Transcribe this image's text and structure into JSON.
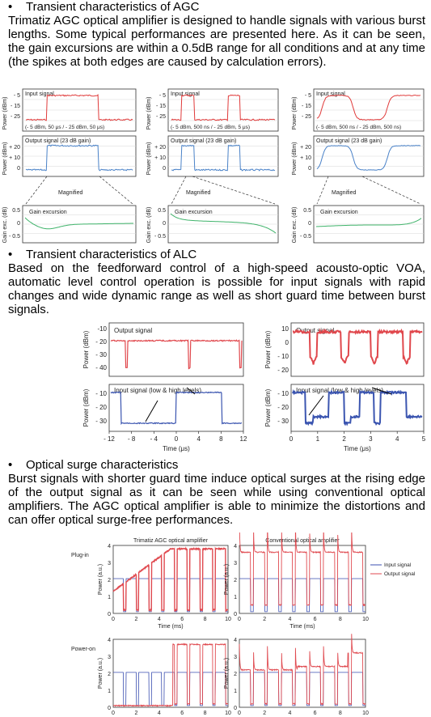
{
  "sections": {
    "agc": {
      "bullet": "•",
      "heading": "Transient characteristics of AGC",
      "body": "Trimatiz AGC optical amplifier is designed to handle signals with various burst lengths. Some typical performances are presented here. As it can be seen, the gain excursions are within a  0.5dB range for all conditions and at any time (the spikes at both edges are caused by calculation errors)."
    },
    "alc": {
      "bullet": "•",
      "heading": "Transient characteristics of ALC",
      "body": "Based on the feedforward control of a high-speed acousto-optic VOA, automatic level control operation is possible for input signals with rapid changes and wide dynamic range as well as short guard time between burst signals."
    },
    "surge": {
      "bullet": "•",
      "heading": "Optical surge characteristics",
      "body": "Burst signals with shorter guard time induce optical surges at the rising edge of the output signal as it can be seen while using conventional optical amplifiers. The AGC optical amplifier is able to minimize the distortions and can offer optical surge-free performances."
    }
  },
  "agc_figure": {
    "input_label": "Input signal",
    "output_label": "Output signal (23 dB gain)",
    "gain_label": "Gain excursion",
    "magnified": "Magnified",
    "ylabel_power": "Power (dBm)",
    "ylabel_gain": "Gain exc. (dB)",
    "in_ticks": [
      "- 5",
      "- 15",
      "- 25"
    ],
    "out_ticks": [
      "+ 20",
      "+ 10",
      "0"
    ],
    "gain_ticks": [
      "0.5",
      "0",
      "- 0.5"
    ],
    "conditions": [
      "(- 5 dBm, 50 μs / - 25 dBm, 50 μs)",
      "(- 5 dBm, 500 ns / - 25 dBm, 5 μs)",
      "(- 5 dBm, 500 ns / - 25 dBm, 500 ns)"
    ]
  },
  "alc_figure": {
    "output_label": "Output signal",
    "input_label": "Input signal (low & high levels)",
    "ylabel": "Power (dBm)",
    "xlabel": "Time (μs)",
    "left_out_ticks": [
      "-10",
      "- 20",
      "- 30",
      "- 40"
    ],
    "left_in_ticks": [
      "- 10",
      "- 20",
      "- 30"
    ],
    "left_x_ticks": [
      "- 12",
      "- 8",
      "- 4",
      "0",
      "4",
      "8",
      "12"
    ],
    "right_out_ticks": [
      "10",
      "0",
      "- 10",
      "- 20"
    ],
    "right_in_ticks": [
      "- 10",
      "- 20",
      "- 30"
    ],
    "right_x_ticks": [
      "0",
      "1",
      "2",
      "3",
      "4",
      "5"
    ],
    "color_out": "#e0474c",
    "color_in": "#3b55b0"
  },
  "surge_figure": {
    "title_agc": "Trimatiz AGC optical amplifier",
    "title_conv": "Conventional optical amplifier",
    "row_plugin": "Plug-in",
    "row_poweron": "Power-on",
    "ylabel": "Power (a.u.)",
    "xlabel": "Time (ms)",
    "y_ticks": [
      "0",
      "1",
      "2",
      "3",
      "4"
    ],
    "x_ticks": [
      "0",
      "2",
      "4",
      "6",
      "8",
      "10"
    ],
    "legend_input": "Input signal",
    "legend_output": "Output signal",
    "color_input": "#3b4fb0",
    "color_output": "#e04a50"
  },
  "colors": {
    "agc_input": "#e03a3a",
    "agc_output": "#4a82c8",
    "agc_gain": "#3fb36a"
  }
}
